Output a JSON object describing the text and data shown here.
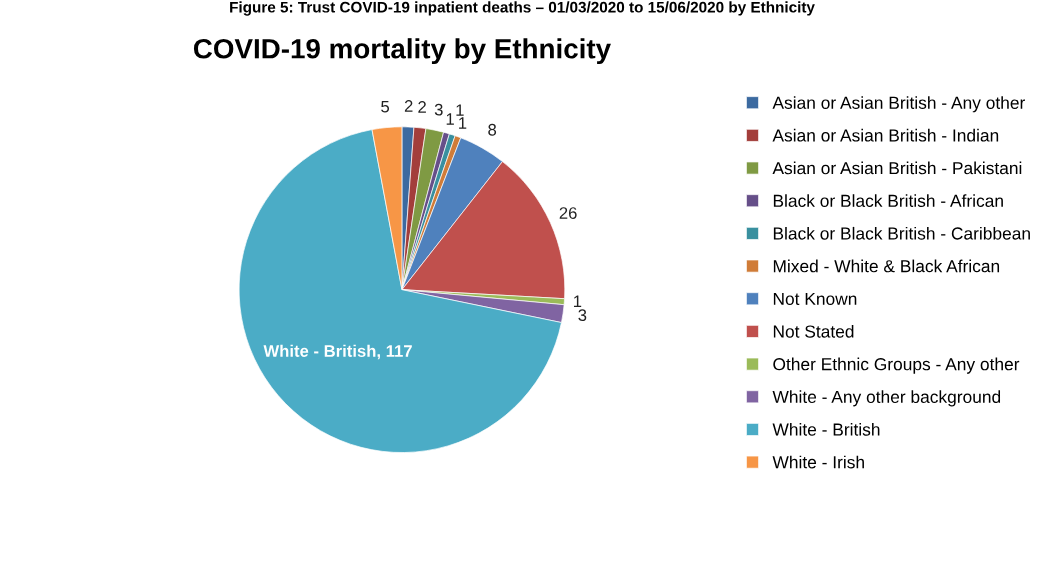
{
  "chart_data": {
    "type": "pie",
    "title": "COVID-19 mortality by Ethnicity",
    "annotations": [
      "Figure 5: Trust COVID-19 inpatient deaths – 01/03/2020 to 15/06/2020 by Ethnicity"
    ],
    "categories": [
      "Asian or Asian British - Any other",
      "Asian or Asian British - Indian",
      "Asian or Asian British - Pakistani",
      "Black or Black British - African",
      "Black or Black British - Caribbean",
      "Mixed - White & Black African",
      "Not Known",
      "Not Stated",
      "Other Ethnic Groups - Any other",
      "White - Any other background",
      "White - British",
      "White - Irish"
    ],
    "values": [
      2,
      2,
      3,
      1,
      1,
      1,
      8,
      26,
      1,
      3,
      117,
      5
    ],
    "colors": [
      "#3c6aa0",
      "#a33e3b",
      "#7f9a43",
      "#664f89",
      "#39909f",
      "#d07c38",
      "#4f81bd",
      "#c0504d",
      "#9bbb59",
      "#8064a2",
      "#4bacc6",
      "#f79646"
    ],
    "value_labels": [
      "2",
      "2",
      "3",
      "1",
      "1",
      "1",
      "8",
      "26",
      "1",
      "3",
      "White - British, 117",
      "5"
    ],
    "legend": "right"
  }
}
